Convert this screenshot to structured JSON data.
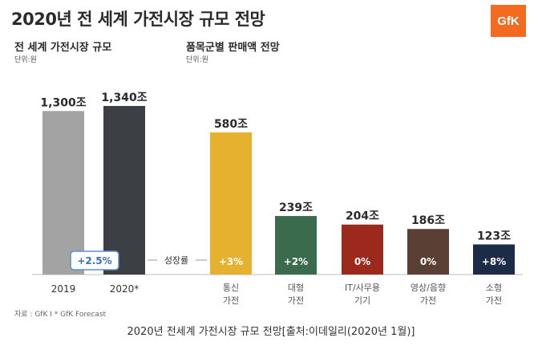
{
  "title": "2020년 전 세계 가전시장 규모 전망",
  "logo_text": "GfK",
  "left_section": {
    "heading": "전 세계 가전시장 규모",
    "unit": "단위:원"
  },
  "right_section": {
    "heading": "품목군별 판매액 전망",
    "unit": "단위:원"
  },
  "growth_label": "성장률",
  "source": "자료 : GfK I * GfK Forecast",
  "caption": "2020년 전세계 가전시장 규모 전망[출처:이데일리(2020년 1월)]",
  "chart_data": [
    {
      "type": "bar",
      "title": "전 세계 가전시장 규모",
      "categories": [
        "2019",
        "2020*"
      ],
      "values": [
        1300,
        1340
      ],
      "value_labels": [
        "1,300조",
        "1,340조"
      ],
      "growth": "+2.5%",
      "colors": [
        "#a3a3a3",
        "#3c3f44"
      ],
      "ylim": [
        0,
        1400
      ],
      "grid": false
    },
    {
      "type": "bar",
      "title": "품목군별 판매액 전망",
      "categories": [
        [
          "통신",
          "가전"
        ],
        [
          "대형",
          "가전"
        ],
        [
          "IT/사무용",
          "기기"
        ],
        [
          "영상/음향",
          "가전"
        ],
        [
          "소형",
          "가전"
        ]
      ],
      "values": [
        580,
        239,
        204,
        186,
        123
      ],
      "value_labels": [
        "580조",
        "239조",
        "204조",
        "186조",
        "123조"
      ],
      "growth": [
        "+3%",
        "+2%",
        "0%",
        "0%",
        "+8%"
      ],
      "colors": [
        "#e5b12f",
        "#3b6b4d",
        "#9c2a1c",
        "#5a3f34",
        "#1c2b48"
      ],
      "ylim": [
        0,
        700
      ],
      "grid": false
    }
  ]
}
